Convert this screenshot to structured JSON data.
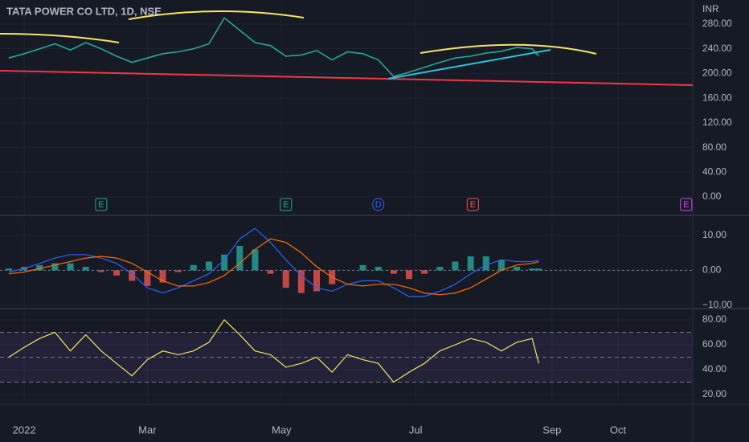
{
  "header": {
    "symbol": "TATA POWER CO LTD, 1D, NSE",
    "currency": "INR"
  },
  "chart_data": [
    {
      "type": "line",
      "xlim": [
        -7,
        308
      ],
      "ylim": [
        -26,
        319
      ],
      "yticks": [
        {
          "value": 0,
          "label": "0.00"
        },
        {
          "value": 40,
          "label": "40.00"
        },
        {
          "value": 80,
          "label": "80.00"
        },
        {
          "value": 120,
          "label": "120.00"
        },
        {
          "value": 160,
          "label": "160.00"
        },
        {
          "value": 200,
          "label": "200.00"
        },
        {
          "value": 240,
          "label": "240.00"
        },
        {
          "value": 280,
          "label": "280.00"
        }
      ],
      "x": [
        -3,
        4,
        11,
        18,
        25,
        32,
        39,
        46,
        53,
        60,
        67,
        74,
        81,
        88,
        95,
        102,
        109,
        116,
        123,
        130,
        137,
        144,
        151,
        158,
        165,
        172,
        179,
        186,
        193,
        200,
        207,
        214,
        221,
        228,
        235,
        238
      ],
      "series": [
        {
          "color": "#26a69a",
          "values": [
            225,
            232,
            240,
            248,
            238,
            250,
            240,
            228,
            218,
            225,
            232,
            235,
            240,
            248,
            290,
            270,
            250,
            245,
            228,
            230,
            237,
            222,
            235,
            232,
            222,
            195,
            202,
            210,
            218,
            225,
            228,
            233,
            236,
            242,
            240,
            228
          ]
        }
      ],
      "events": [
        {
          "x": 39,
          "label": "E",
          "color": "#26a69a"
        },
        {
          "x": 123,
          "label": "E",
          "color": "#26a69a"
        },
        {
          "x": 165,
          "label": "D",
          "color": "#2962ff"
        },
        {
          "x": 208,
          "label": "E",
          "color": "#ef5350"
        },
        {
          "x": 305,
          "label": "E",
          "color": "#e040fb"
        }
      ]
    },
    {
      "type": "macd",
      "xlim": [
        -7,
        308
      ],
      "ylim": [
        -10.5,
        14.8
      ],
      "yticks": [
        {
          "value": -10,
          "label": "−10.00"
        },
        {
          "value": 0,
          "label": "0.00"
        },
        {
          "value": 10,
          "label": "10.00"
        }
      ],
      "x": [
        -3,
        4,
        11,
        18,
        25,
        32,
        39,
        46,
        53,
        60,
        67,
        74,
        81,
        88,
        95,
        102,
        109,
        116,
        123,
        130,
        137,
        144,
        151,
        158,
        165,
        172,
        179,
        186,
        193,
        200,
        207,
        214,
        221,
        228,
        235,
        238
      ],
      "histogram": [
        0.5,
        1,
        1.5,
        2,
        2,
        1,
        -0.5,
        -1.5,
        -3,
        -4.5,
        -3.5,
        -0.5,
        1.5,
        2.5,
        4.5,
        7,
        6,
        -1,
        -5,
        -6.5,
        -6,
        -4,
        0,
        1.5,
        1,
        -1,
        -2.5,
        -1,
        1,
        2.5,
        4,
        4,
        3,
        1,
        0.5,
        0.5
      ],
      "series": [
        {
          "color": "#2962ff",
          "values": [
            -0.5,
            0.5,
            2,
            3.5,
            4.5,
            4.5,
            3.5,
            2,
            -1,
            -5,
            -6.5,
            -5,
            -3,
            -1,
            3,
            9,
            12,
            8,
            3,
            -1.5,
            -5,
            -6,
            -4,
            -3,
            -3,
            -5,
            -7.5,
            -7.5,
            -6,
            -4,
            -1,
            1.5,
            3,
            2.5,
            2.5,
            3
          ]
        },
        {
          "color": "#ff6d00",
          "values": [
            -1,
            -0.5,
            0.5,
            1.5,
            2.5,
            3.5,
            4,
            3.5,
            2,
            -0.5,
            -3,
            -4.5,
            -4.5,
            -3.5,
            -1.5,
            2,
            6,
            9,
            8,
            5,
            1,
            -2,
            -4,
            -4.5,
            -4,
            -4,
            -5,
            -6.5,
            -7,
            -6.5,
            -5,
            -2.5,
            0,
            1.5,
            2,
            2.5
          ]
        }
      ]
    },
    {
      "type": "line",
      "xlim": [
        -7,
        308
      ],
      "ylim": [
        14.2,
        87.7
      ],
      "yticks": [
        {
          "value": 20,
          "label": "20.00"
        },
        {
          "value": 40,
          "label": "40.00"
        },
        {
          "value": 60,
          "label": "60.00"
        },
        {
          "value": 80,
          "label": "80.00"
        }
      ],
      "bands": [
        30,
        50,
        70
      ],
      "xticks": [
        {
          "value": 4,
          "label": "2022"
        },
        {
          "value": 60,
          "label": "Mar"
        },
        {
          "value": 121,
          "label": "May"
        },
        {
          "value": 182,
          "label": "Jul"
        },
        {
          "value": 244,
          "label": "Sep"
        },
        {
          "value": 274,
          "label": "Oct"
        }
      ],
      "x": [
        -3,
        4,
        11,
        18,
        25,
        32,
        39,
        46,
        53,
        60,
        67,
        74,
        81,
        88,
        95,
        102,
        109,
        116,
        123,
        130,
        137,
        144,
        151,
        158,
        165,
        172,
        179,
        186,
        193,
        200,
        207,
        214,
        221,
        228,
        235,
        238
      ],
      "series": [
        {
          "color": "#f5e663",
          "values": [
            50,
            58,
            65,
            70,
            55,
            68,
            55,
            45,
            35,
            48,
            55,
            52,
            55,
            62,
            80,
            68,
            55,
            52,
            42,
            45,
            50,
            38,
            52,
            48,
            45,
            30,
            38,
            45,
            55,
            60,
            65,
            62,
            55,
            62,
            65,
            45
          ]
        }
      ]
    }
  ]
}
